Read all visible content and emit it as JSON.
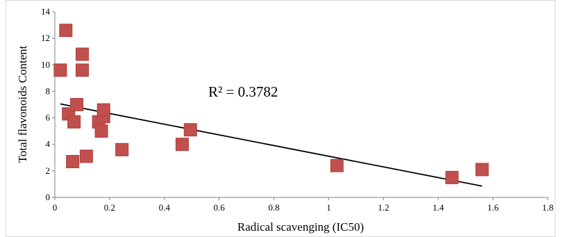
{
  "chart_data": {
    "type": "scatter",
    "xlabel": "Radical scavenging (IC50)",
    "ylabel": "Total  flavonoids Content",
    "xlim": [
      0,
      1.8
    ],
    "ylim": [
      0,
      14
    ],
    "x_ticks": [
      "0",
      "0.2",
      "0.4",
      "0.6",
      "0.8",
      "1",
      "1.2",
      "1.4",
      "1.6",
      "1.8"
    ],
    "y_ticks": [
      "0",
      "2",
      "4",
      "6",
      "8",
      "10",
      "12",
      "14"
    ],
    "grid": false,
    "legend": "none",
    "marker": "square",
    "marker_color": "#c0504d",
    "series": [
      {
        "points": [
          {
            "x": 0.02,
            "y": 9.6
          },
          {
            "x": 0.04,
            "y": 12.6
          },
          {
            "x": 0.05,
            "y": 6.3
          },
          {
            "x": 0.065,
            "y": 2.7
          },
          {
            "x": 0.07,
            "y": 5.7
          },
          {
            "x": 0.08,
            "y": 7.0
          },
          {
            "x": 0.1,
            "y": 10.8
          },
          {
            "x": 0.1,
            "y": 9.6
          },
          {
            "x": 0.115,
            "y": 3.1
          },
          {
            "x": 0.16,
            "y": 5.7
          },
          {
            "x": 0.17,
            "y": 5.0
          },
          {
            "x": 0.178,
            "y": 6.1
          },
          {
            "x": 0.178,
            "y": 6.6
          },
          {
            "x": 0.245,
            "y": 3.6
          },
          {
            "x": 0.465,
            "y": 4.0
          },
          {
            "x": 0.495,
            "y": 5.1
          },
          {
            "x": 1.03,
            "y": 2.4
          },
          {
            "x": 1.45,
            "y": 1.5
          },
          {
            "x": 1.56,
            "y": 2.1
          }
        ]
      }
    ],
    "trendline": {
      "type": "linear",
      "color": "#000000",
      "x_start": 0.02,
      "y_start": 7.05,
      "x_end": 1.56,
      "y_end": 0.85,
      "r_squared_label": "R² = 0.3782"
    }
  }
}
